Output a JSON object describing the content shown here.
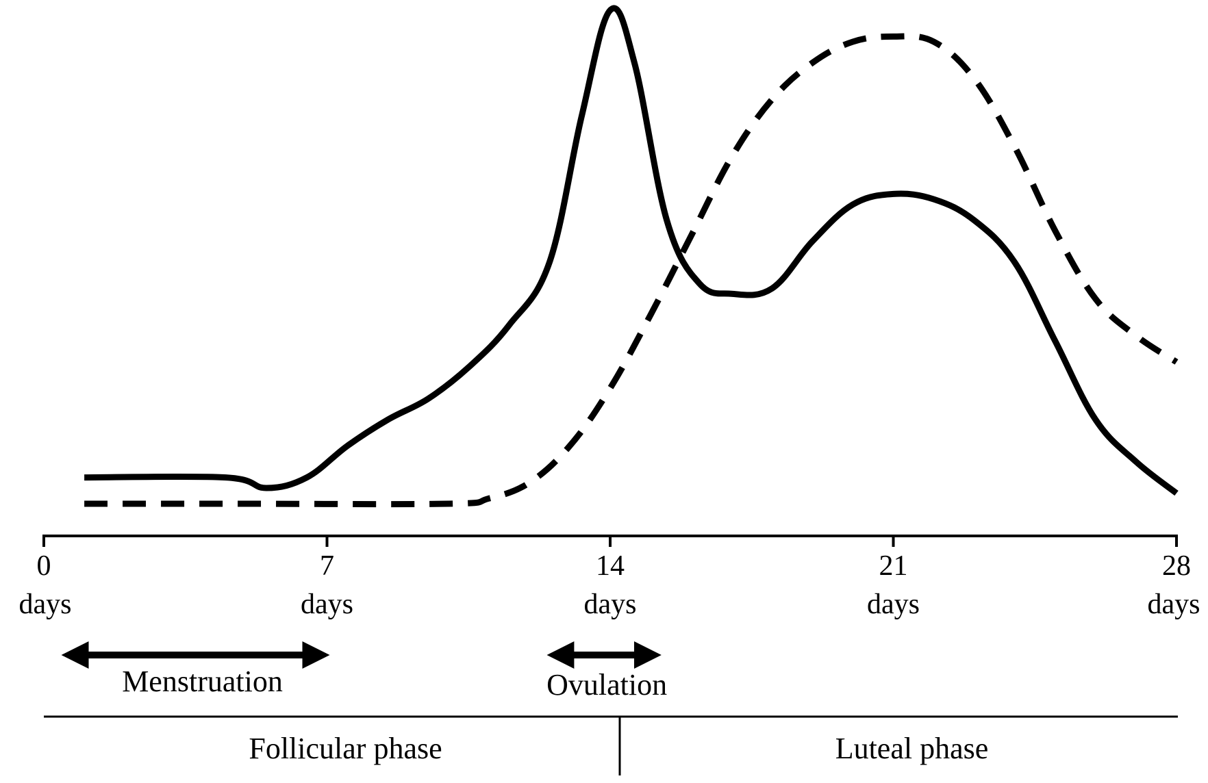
{
  "chart_data": {
    "type": "line",
    "title": "",
    "xlabel": "",
    "ylabel": "",
    "xlim": [
      0,
      28
    ],
    "ylim": [
      0,
      1
    ],
    "grid": false,
    "legend": "none",
    "x_ticks": [
      {
        "value": 0,
        "number": "0",
        "unit": "days"
      },
      {
        "value": 7,
        "number": "7",
        "unit": "days"
      },
      {
        "value": 14,
        "number": "14",
        "unit": "days"
      },
      {
        "value": 21,
        "number": "21",
        "unit": "days"
      },
      {
        "value": 28,
        "number": "28",
        "unit": "days"
      }
    ],
    "series": [
      {
        "style": "solid",
        "points": [
          [
            1.0,
            0.11
          ],
          [
            4.5,
            0.11
          ],
          [
            5.5,
            0.09
          ],
          [
            6.5,
            0.11
          ],
          [
            7.5,
            0.17
          ],
          [
            8.5,
            0.22
          ],
          [
            9.5,
            0.26
          ],
          [
            10.5,
            0.32
          ],
          [
            11.5,
            0.4
          ],
          [
            12.5,
            0.52
          ],
          [
            13.3,
            0.8
          ],
          [
            14.0,
            1.0
          ],
          [
            14.6,
            0.9
          ],
          [
            15.4,
            0.6
          ],
          [
            16.2,
            0.48
          ],
          [
            17.0,
            0.46
          ],
          [
            18.0,
            0.47
          ],
          [
            19.0,
            0.56
          ],
          [
            20.0,
            0.63
          ],
          [
            21.0,
            0.65
          ],
          [
            22.0,
            0.64
          ],
          [
            23.0,
            0.6
          ],
          [
            24.0,
            0.52
          ],
          [
            25.0,
            0.37
          ],
          [
            26.0,
            0.22
          ],
          [
            27.0,
            0.14
          ],
          [
            28.0,
            0.08
          ]
        ]
      },
      {
        "style": "dashed",
        "points": [
          [
            1.0,
            0.06
          ],
          [
            5.0,
            0.06
          ],
          [
            10.0,
            0.06
          ],
          [
            11.0,
            0.07
          ],
          [
            12.0,
            0.1
          ],
          [
            13.0,
            0.17
          ],
          [
            14.0,
            0.28
          ],
          [
            15.0,
            0.42
          ],
          [
            16.0,
            0.57
          ],
          [
            17.0,
            0.72
          ],
          [
            18.0,
            0.83
          ],
          [
            19.0,
            0.9
          ],
          [
            20.0,
            0.94
          ],
          [
            21.0,
            0.95
          ],
          [
            22.0,
            0.94
          ],
          [
            23.0,
            0.87
          ],
          [
            24.0,
            0.74
          ],
          [
            25.0,
            0.58
          ],
          [
            26.0,
            0.45
          ],
          [
            27.0,
            0.38
          ],
          [
            28.0,
            0.33
          ]
        ]
      }
    ],
    "annotations": {
      "menstruation": {
        "label": "Menstruation",
        "from": 0.5,
        "to": 7
      },
      "ovulation": {
        "label": "Ovulation",
        "from": 12.5,
        "to": 15.2
      }
    },
    "phases": {
      "follicular": {
        "label": "Follicular phase",
        "from": 0,
        "to": 14
      },
      "luteal": {
        "label": "Luteal phase",
        "from": 14,
        "to": 28
      }
    }
  }
}
